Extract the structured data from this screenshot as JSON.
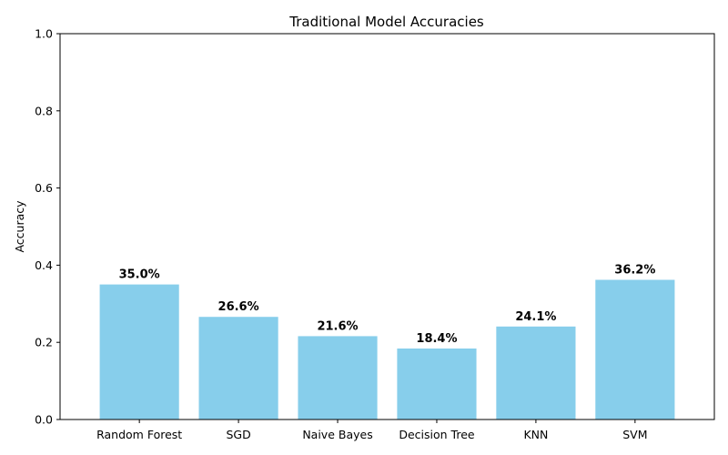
{
  "chart_data": {
    "type": "bar",
    "title": "Traditional Model Accuracies",
    "xlabel": "",
    "ylabel": "Accuracy",
    "categories": [
      "Random Forest",
      "SGD",
      "Naive Bayes",
      "Decision Tree",
      "KNN",
      "SVM"
    ],
    "values": [
      0.35,
      0.266,
      0.216,
      0.184,
      0.241,
      0.362
    ],
    "data_labels": [
      "35.0%",
      "26.6%",
      "21.6%",
      "18.4%",
      "24.1%",
      "36.2%"
    ],
    "ylim": [
      0,
      1.0
    ],
    "yticks": [
      0.0,
      0.2,
      0.4,
      0.6,
      0.8,
      1.0
    ],
    "ytick_labels": [
      "0.0",
      "0.2",
      "0.4",
      "0.6",
      "0.8",
      "1.0"
    ],
    "bar_color": "#87ceeb",
    "grid": false,
    "legend": "none"
  }
}
